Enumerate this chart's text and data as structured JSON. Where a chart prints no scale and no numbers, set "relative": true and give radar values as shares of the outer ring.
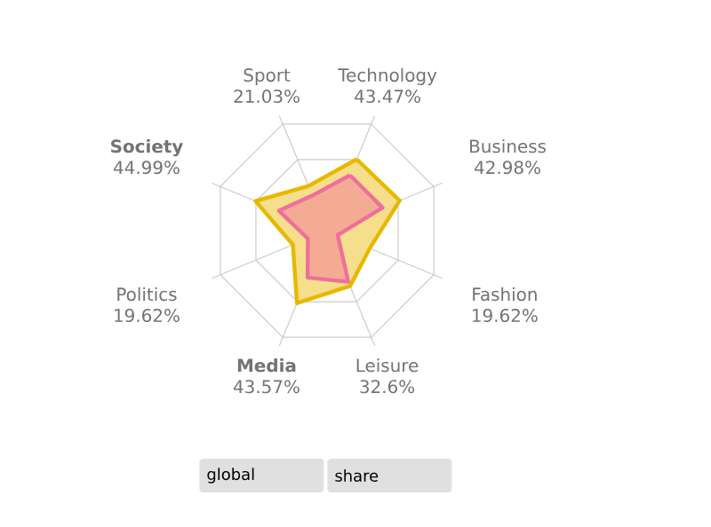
{
  "chart_data": {
    "type": "radar",
    "relative": true,
    "grid": true,
    "marker": "none",
    "categories": [
      "Technology 43.47%",
      "Business 42.98%",
      "Fashion 19.62%",
      "Leisure 32.6%",
      "**Media** 43.57%",
      "Politics 19.62%",
      "**Society** 44.99%",
      "Sport 21.03%"
    ],
    "series": [
      {
        "color": "#e8b800",
        "values": [
          0.67,
          0.68,
          0.4,
          0.52,
          0.68,
          0.32,
          0.67,
          0.42
        ]
      },
      {
        "color": "#f06e9c",
        "values": [
          0.52,
          0.52,
          0.1,
          0.48,
          0.44,
          0.18,
          0.45,
          0.33
        ]
      }
    ],
    "annotations": [
      "global",
      "share"
    ]
  }
}
